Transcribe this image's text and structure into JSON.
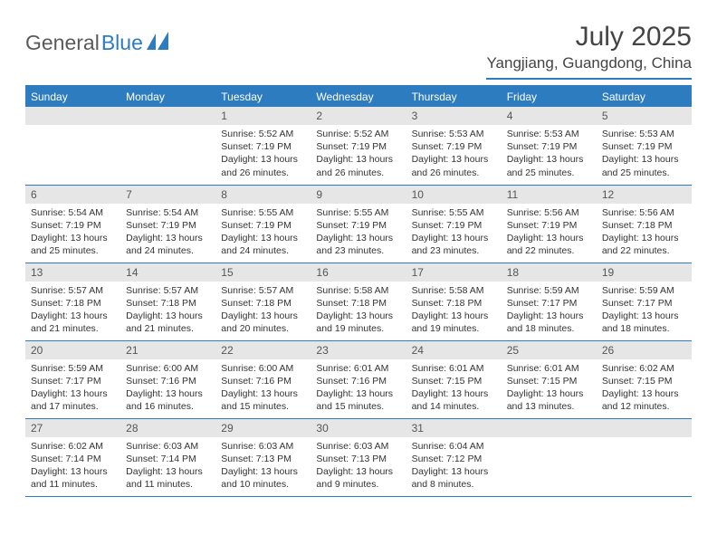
{
  "logo": {
    "text1": "General",
    "text2": "Blue"
  },
  "title": "July 2025",
  "location": "Yangjiang, Guangdong, China",
  "colors": {
    "accent": "#2e7cc0",
    "header_bg": "#2e7cc0",
    "header_text": "#ffffff",
    "daynum_bg": "#e6e6e6",
    "text": "#333333",
    "logo_gray": "#5a5a5a",
    "background": "#ffffff"
  },
  "weekdays": [
    "Sunday",
    "Monday",
    "Tuesday",
    "Wednesday",
    "Thursday",
    "Friday",
    "Saturday"
  ],
  "weeks": [
    [
      {
        "n": "",
        "sr": "",
        "ss": "",
        "dl": ""
      },
      {
        "n": "",
        "sr": "",
        "ss": "",
        "dl": ""
      },
      {
        "n": "1",
        "sr": "Sunrise: 5:52 AM",
        "ss": "Sunset: 7:19 PM",
        "dl": "Daylight: 13 hours and 26 minutes."
      },
      {
        "n": "2",
        "sr": "Sunrise: 5:52 AM",
        "ss": "Sunset: 7:19 PM",
        "dl": "Daylight: 13 hours and 26 minutes."
      },
      {
        "n": "3",
        "sr": "Sunrise: 5:53 AM",
        "ss": "Sunset: 7:19 PM",
        "dl": "Daylight: 13 hours and 26 minutes."
      },
      {
        "n": "4",
        "sr": "Sunrise: 5:53 AM",
        "ss": "Sunset: 7:19 PM",
        "dl": "Daylight: 13 hours and 25 minutes."
      },
      {
        "n": "5",
        "sr": "Sunrise: 5:53 AM",
        "ss": "Sunset: 7:19 PM",
        "dl": "Daylight: 13 hours and 25 minutes."
      }
    ],
    [
      {
        "n": "6",
        "sr": "Sunrise: 5:54 AM",
        "ss": "Sunset: 7:19 PM",
        "dl": "Daylight: 13 hours and 25 minutes."
      },
      {
        "n": "7",
        "sr": "Sunrise: 5:54 AM",
        "ss": "Sunset: 7:19 PM",
        "dl": "Daylight: 13 hours and 24 minutes."
      },
      {
        "n": "8",
        "sr": "Sunrise: 5:55 AM",
        "ss": "Sunset: 7:19 PM",
        "dl": "Daylight: 13 hours and 24 minutes."
      },
      {
        "n": "9",
        "sr": "Sunrise: 5:55 AM",
        "ss": "Sunset: 7:19 PM",
        "dl": "Daylight: 13 hours and 23 minutes."
      },
      {
        "n": "10",
        "sr": "Sunrise: 5:55 AM",
        "ss": "Sunset: 7:19 PM",
        "dl": "Daylight: 13 hours and 23 minutes."
      },
      {
        "n": "11",
        "sr": "Sunrise: 5:56 AM",
        "ss": "Sunset: 7:19 PM",
        "dl": "Daylight: 13 hours and 22 minutes."
      },
      {
        "n": "12",
        "sr": "Sunrise: 5:56 AM",
        "ss": "Sunset: 7:18 PM",
        "dl": "Daylight: 13 hours and 22 minutes."
      }
    ],
    [
      {
        "n": "13",
        "sr": "Sunrise: 5:57 AM",
        "ss": "Sunset: 7:18 PM",
        "dl": "Daylight: 13 hours and 21 minutes."
      },
      {
        "n": "14",
        "sr": "Sunrise: 5:57 AM",
        "ss": "Sunset: 7:18 PM",
        "dl": "Daylight: 13 hours and 21 minutes."
      },
      {
        "n": "15",
        "sr": "Sunrise: 5:57 AM",
        "ss": "Sunset: 7:18 PM",
        "dl": "Daylight: 13 hours and 20 minutes."
      },
      {
        "n": "16",
        "sr": "Sunrise: 5:58 AM",
        "ss": "Sunset: 7:18 PM",
        "dl": "Daylight: 13 hours and 19 minutes."
      },
      {
        "n": "17",
        "sr": "Sunrise: 5:58 AM",
        "ss": "Sunset: 7:18 PM",
        "dl": "Daylight: 13 hours and 19 minutes."
      },
      {
        "n": "18",
        "sr": "Sunrise: 5:59 AM",
        "ss": "Sunset: 7:17 PM",
        "dl": "Daylight: 13 hours and 18 minutes."
      },
      {
        "n": "19",
        "sr": "Sunrise: 5:59 AM",
        "ss": "Sunset: 7:17 PM",
        "dl": "Daylight: 13 hours and 18 minutes."
      }
    ],
    [
      {
        "n": "20",
        "sr": "Sunrise: 5:59 AM",
        "ss": "Sunset: 7:17 PM",
        "dl": "Daylight: 13 hours and 17 minutes."
      },
      {
        "n": "21",
        "sr": "Sunrise: 6:00 AM",
        "ss": "Sunset: 7:16 PM",
        "dl": "Daylight: 13 hours and 16 minutes."
      },
      {
        "n": "22",
        "sr": "Sunrise: 6:00 AM",
        "ss": "Sunset: 7:16 PM",
        "dl": "Daylight: 13 hours and 15 minutes."
      },
      {
        "n": "23",
        "sr": "Sunrise: 6:01 AM",
        "ss": "Sunset: 7:16 PM",
        "dl": "Daylight: 13 hours and 15 minutes."
      },
      {
        "n": "24",
        "sr": "Sunrise: 6:01 AM",
        "ss": "Sunset: 7:15 PM",
        "dl": "Daylight: 13 hours and 14 minutes."
      },
      {
        "n": "25",
        "sr": "Sunrise: 6:01 AM",
        "ss": "Sunset: 7:15 PM",
        "dl": "Daylight: 13 hours and 13 minutes."
      },
      {
        "n": "26",
        "sr": "Sunrise: 6:02 AM",
        "ss": "Sunset: 7:15 PM",
        "dl": "Daylight: 13 hours and 12 minutes."
      }
    ],
    [
      {
        "n": "27",
        "sr": "Sunrise: 6:02 AM",
        "ss": "Sunset: 7:14 PM",
        "dl": "Daylight: 13 hours and 11 minutes."
      },
      {
        "n": "28",
        "sr": "Sunrise: 6:03 AM",
        "ss": "Sunset: 7:14 PM",
        "dl": "Daylight: 13 hours and 11 minutes."
      },
      {
        "n": "29",
        "sr": "Sunrise: 6:03 AM",
        "ss": "Sunset: 7:13 PM",
        "dl": "Daylight: 13 hours and 10 minutes."
      },
      {
        "n": "30",
        "sr": "Sunrise: 6:03 AM",
        "ss": "Sunset: 7:13 PM",
        "dl": "Daylight: 13 hours and 9 minutes."
      },
      {
        "n": "31",
        "sr": "Sunrise: 6:04 AM",
        "ss": "Sunset: 7:12 PM",
        "dl": "Daylight: 13 hours and 8 minutes."
      },
      {
        "n": "",
        "sr": "",
        "ss": "",
        "dl": ""
      },
      {
        "n": "",
        "sr": "",
        "ss": "",
        "dl": ""
      }
    ]
  ]
}
